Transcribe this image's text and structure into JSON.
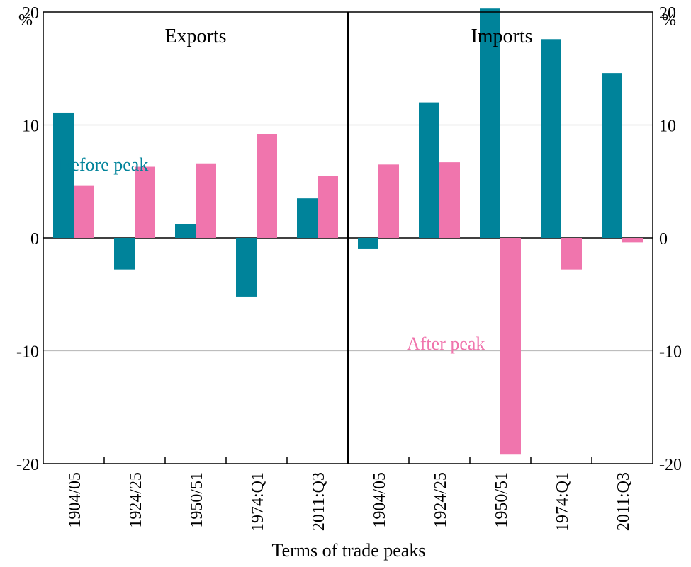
{
  "chart_data": {
    "type": "bar",
    "unit_label": "%",
    "xlabel": "Terms of trade peaks",
    "ylim": [
      -20,
      20
    ],
    "yticks": [
      -20,
      -10,
      0,
      10,
      20
    ],
    "grid": true,
    "series_colors": {
      "Before peak": "#00839a",
      "After peak": "#f075ad"
    },
    "annotations": {
      "before": "Before peak",
      "after": "After peak"
    },
    "panels": [
      {
        "title": "Exports",
        "categories": [
          "1904/05",
          "1924/25",
          "1950/51",
          "1974:Q1",
          "2011:Q3"
        ],
        "series": [
          {
            "name": "Before peak",
            "values": [
              11.1,
              -2.8,
              1.2,
              -5.2,
              3.5
            ]
          },
          {
            "name": "After peak",
            "values": [
              4.6,
              6.3,
              6.6,
              9.2,
              5.5
            ]
          }
        ]
      },
      {
        "title": "Imports",
        "categories": [
          "1904/05",
          "1924/25",
          "1950/51",
          "1974:Q1",
          "2011:Q3"
        ],
        "series": [
          {
            "name": "Before peak",
            "values": [
              -1.0,
              12.0,
              20.3,
              17.6,
              14.6
            ]
          },
          {
            "name": "After peak",
            "values": [
              6.5,
              6.7,
              -19.2,
              -2.8,
              -0.4
            ]
          }
        ]
      }
    ]
  }
}
